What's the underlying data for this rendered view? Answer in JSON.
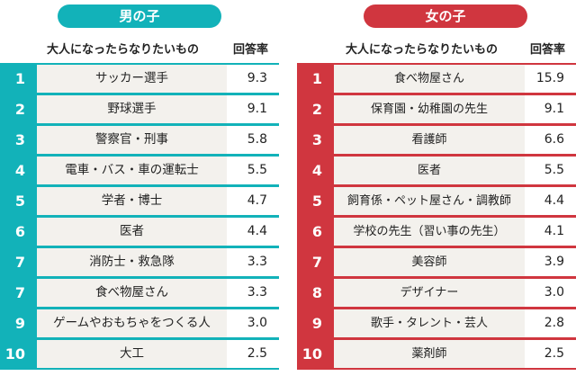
{
  "chart_data": [
    {
      "type": "table",
      "title": "男の子",
      "columns": [
        "",
        "大人になったらなりたいもの",
        "回答率"
      ],
      "accent_color": "#12b2b9",
      "rows": [
        {
          "rank": "1",
          "name": "サッカー選手",
          "value": "9.3"
        },
        {
          "rank": "2",
          "name": "野球選手",
          "value": "9.1"
        },
        {
          "rank": "3",
          "name": "警察官・刑事",
          "value": "5.8"
        },
        {
          "rank": "4",
          "name": "電車・バス・車の運転士",
          "value": "5.5"
        },
        {
          "rank": "5",
          "name": "学者・博士",
          "value": "4.7"
        },
        {
          "rank": "6",
          "name": "医者",
          "value": "4.4"
        },
        {
          "rank": "7",
          "name": "消防士・救急隊",
          "value": "3.3"
        },
        {
          "rank": "7",
          "name": "食べ物屋さん",
          "value": "3.3"
        },
        {
          "rank": "9",
          "name": "ゲームやおもちゃをつくる人",
          "value": "3.0"
        },
        {
          "rank": "10",
          "name": "大工",
          "value": "2.5"
        }
      ]
    },
    {
      "type": "table",
      "title": "女の子",
      "columns": [
        "",
        "大人になったらなりたいもの",
        "回答率"
      ],
      "accent_color": "#d0363f",
      "rows": [
        {
          "rank": "1",
          "name": "食べ物屋さん",
          "value": "15.9"
        },
        {
          "rank": "2",
          "name": "保育園・幼稚園の先生",
          "value": "9.1"
        },
        {
          "rank": "3",
          "name": "看護師",
          "value": "6.6"
        },
        {
          "rank": "4",
          "name": "医者",
          "value": "5.5"
        },
        {
          "rank": "5",
          "name": "飼育係・ペット屋さん・調教師",
          "value": "4.4"
        },
        {
          "rank": "6",
          "name": "学校の先生（習い事の先生）",
          "value": "4.1"
        },
        {
          "rank": "7",
          "name": "美容師",
          "value": "3.9"
        },
        {
          "rank": "8",
          "name": "デザイナー",
          "value": "3.0"
        },
        {
          "rank": "9",
          "name": "歌手・タレント・芸人",
          "value": "2.8"
        },
        {
          "rank": "10",
          "name": "薬剤師",
          "value": "2.5"
        }
      ]
    }
  ]
}
